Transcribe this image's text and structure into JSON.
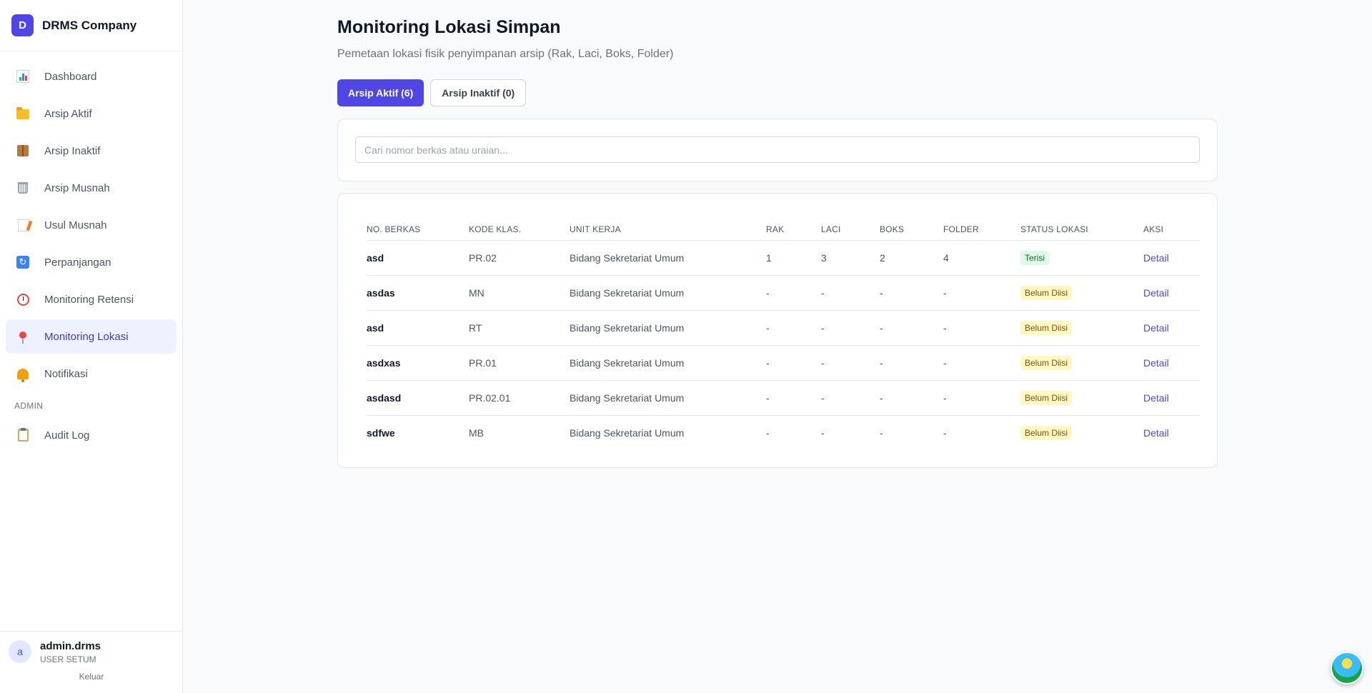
{
  "brand": {
    "logo_letter": "D",
    "name": "DRMS Company"
  },
  "sidebar": {
    "items": [
      {
        "label": "Dashboard",
        "icon": "bar-chart-icon"
      },
      {
        "label": "Arsip Aktif",
        "icon": "folder-icon"
      },
      {
        "label": "Arsip Inaktif",
        "icon": "box-icon"
      },
      {
        "label": "Arsip Musnah",
        "icon": "wastebasket-icon"
      },
      {
        "label": "Usul Musnah",
        "icon": "memo-icon"
      },
      {
        "label": "Perpanjangan",
        "icon": "cycle-icon"
      },
      {
        "label": "Monitoring Retensi",
        "icon": "alarm-clock-icon"
      },
      {
        "label": "Monitoring Lokasi",
        "icon": "pin-icon",
        "active": true
      },
      {
        "label": "Notifikasi",
        "icon": "bell-icon"
      }
    ],
    "admin_section": "ADMIN",
    "admin_items": [
      {
        "label": "Audit Log",
        "icon": "clipboard-icon"
      }
    ]
  },
  "user": {
    "initial": "a",
    "name": "admin.drms",
    "role": "USER SETUM",
    "logout_label": "Keluar"
  },
  "page": {
    "title": "Monitoring Lokasi Simpan",
    "subtitle": "Pemetaan lokasi fisik penyimpanan arsip (Rak, Laci, Boks, Folder)"
  },
  "tabs": [
    {
      "label": "Arsip Aktif (6)",
      "active": true
    },
    {
      "label": "Arsip Inaktif (0)",
      "active": false
    }
  ],
  "search": {
    "placeholder": "Cari nomor berkas atau uraian...",
    "value": ""
  },
  "table": {
    "columns": [
      "NO. BERKAS",
      "KODE KLAS.",
      "UNIT KERJA",
      "RAK",
      "LACI",
      "BOKS",
      "FOLDER",
      "STATUS LOKASI",
      "AKSI"
    ],
    "rows": [
      {
        "no": "asd",
        "kode": "PR.02",
        "unit": "Bidang Sekretariat Umum",
        "rak": "1",
        "laci": "3",
        "boks": "2",
        "folder": "4",
        "status": "Terisi",
        "aksi": "Detail"
      },
      {
        "no": "asdas",
        "kode": "MN",
        "unit": "Bidang Sekretariat Umum",
        "rak": "-",
        "laci": "-",
        "boks": "-",
        "folder": "-",
        "status": "Belum Diisi",
        "aksi": "Detail"
      },
      {
        "no": "asd",
        "kode": "RT",
        "unit": "Bidang Sekretariat Umum",
        "rak": "-",
        "laci": "-",
        "boks": "-",
        "folder": "-",
        "status": "Belum Diisi",
        "aksi": "Detail"
      },
      {
        "no": "asdxas",
        "kode": "PR.01",
        "unit": "Bidang Sekretariat Umum",
        "rak": "-",
        "laci": "-",
        "boks": "-",
        "folder": "-",
        "status": "Belum Diisi",
        "aksi": "Detail"
      },
      {
        "no": "asdasd",
        "kode": "PR.02.01",
        "unit": "Bidang Sekretariat Umum",
        "rak": "-",
        "laci": "-",
        "boks": "-",
        "folder": "-",
        "status": "Belum Diisi",
        "aksi": "Detail"
      },
      {
        "no": "sdfwe",
        "kode": "MB",
        "unit": "Bidang Sekretariat Umum",
        "rak": "-",
        "laci": "-",
        "boks": "-",
        "folder": "-",
        "status": "Belum Diisi",
        "aksi": "Detail"
      }
    ]
  },
  "colors": {
    "accent": "#4f46e5",
    "active_bg": "#eef2ff",
    "status_filled": "#dcfce7",
    "status_empty": "#fef9c3"
  }
}
